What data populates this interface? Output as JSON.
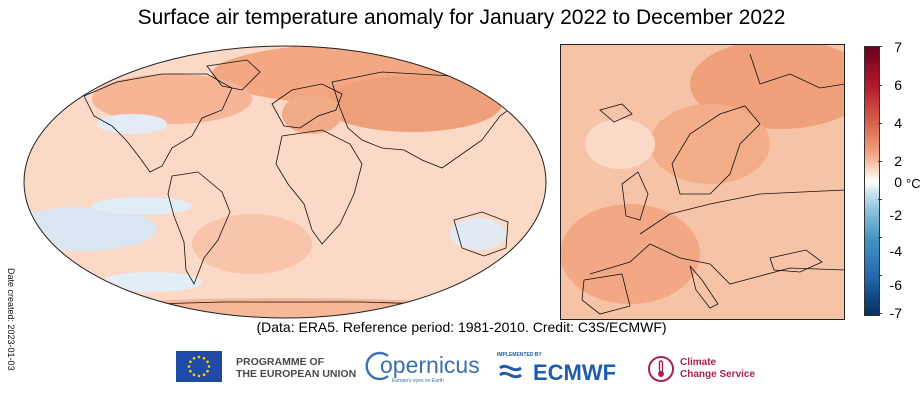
{
  "title": "Surface air temperature anomaly for January 2022 to December 2022",
  "date_created": "Date created: 2023-01-03",
  "credit": "(Data: ERA5.  Reference period: 1981-2010.  Credit: C3S/ECMWF)",
  "colorbar": {
    "unit": "°C",
    "ticks": [
      "7",
      "6",
      "4",
      "2",
      "0",
      "-2",
      "-4",
      "-6",
      "-7"
    ],
    "range": [
      -7,
      7
    ],
    "colors": {
      "max": "#67001f",
      "warm": "#d6604d",
      "neutral": "#ffffff",
      "cool": "#92c5de",
      "min": "#053061"
    }
  },
  "maps": {
    "world": {
      "colors": {
        "ocean_bg": "#fbd9c6",
        "warm": "#f2a882",
        "cool": "#cfe0ef"
      }
    },
    "europe": {
      "colors": {
        "bg": "#f7c3a6",
        "warm": "#ef9d77"
      }
    }
  },
  "logos": {
    "eu_line1": "PROGRAMME OF",
    "eu_line2": "THE EUROPEAN UNION",
    "copernicus": "opernicus",
    "copernicus_sub": "Europe's eyes on Earth",
    "ecmwf_small": "IMPLEMENTED BY",
    "ecmwf": "ECMWF",
    "c3s_line1": "Climate",
    "c3s_line2": "Change Service"
  }
}
